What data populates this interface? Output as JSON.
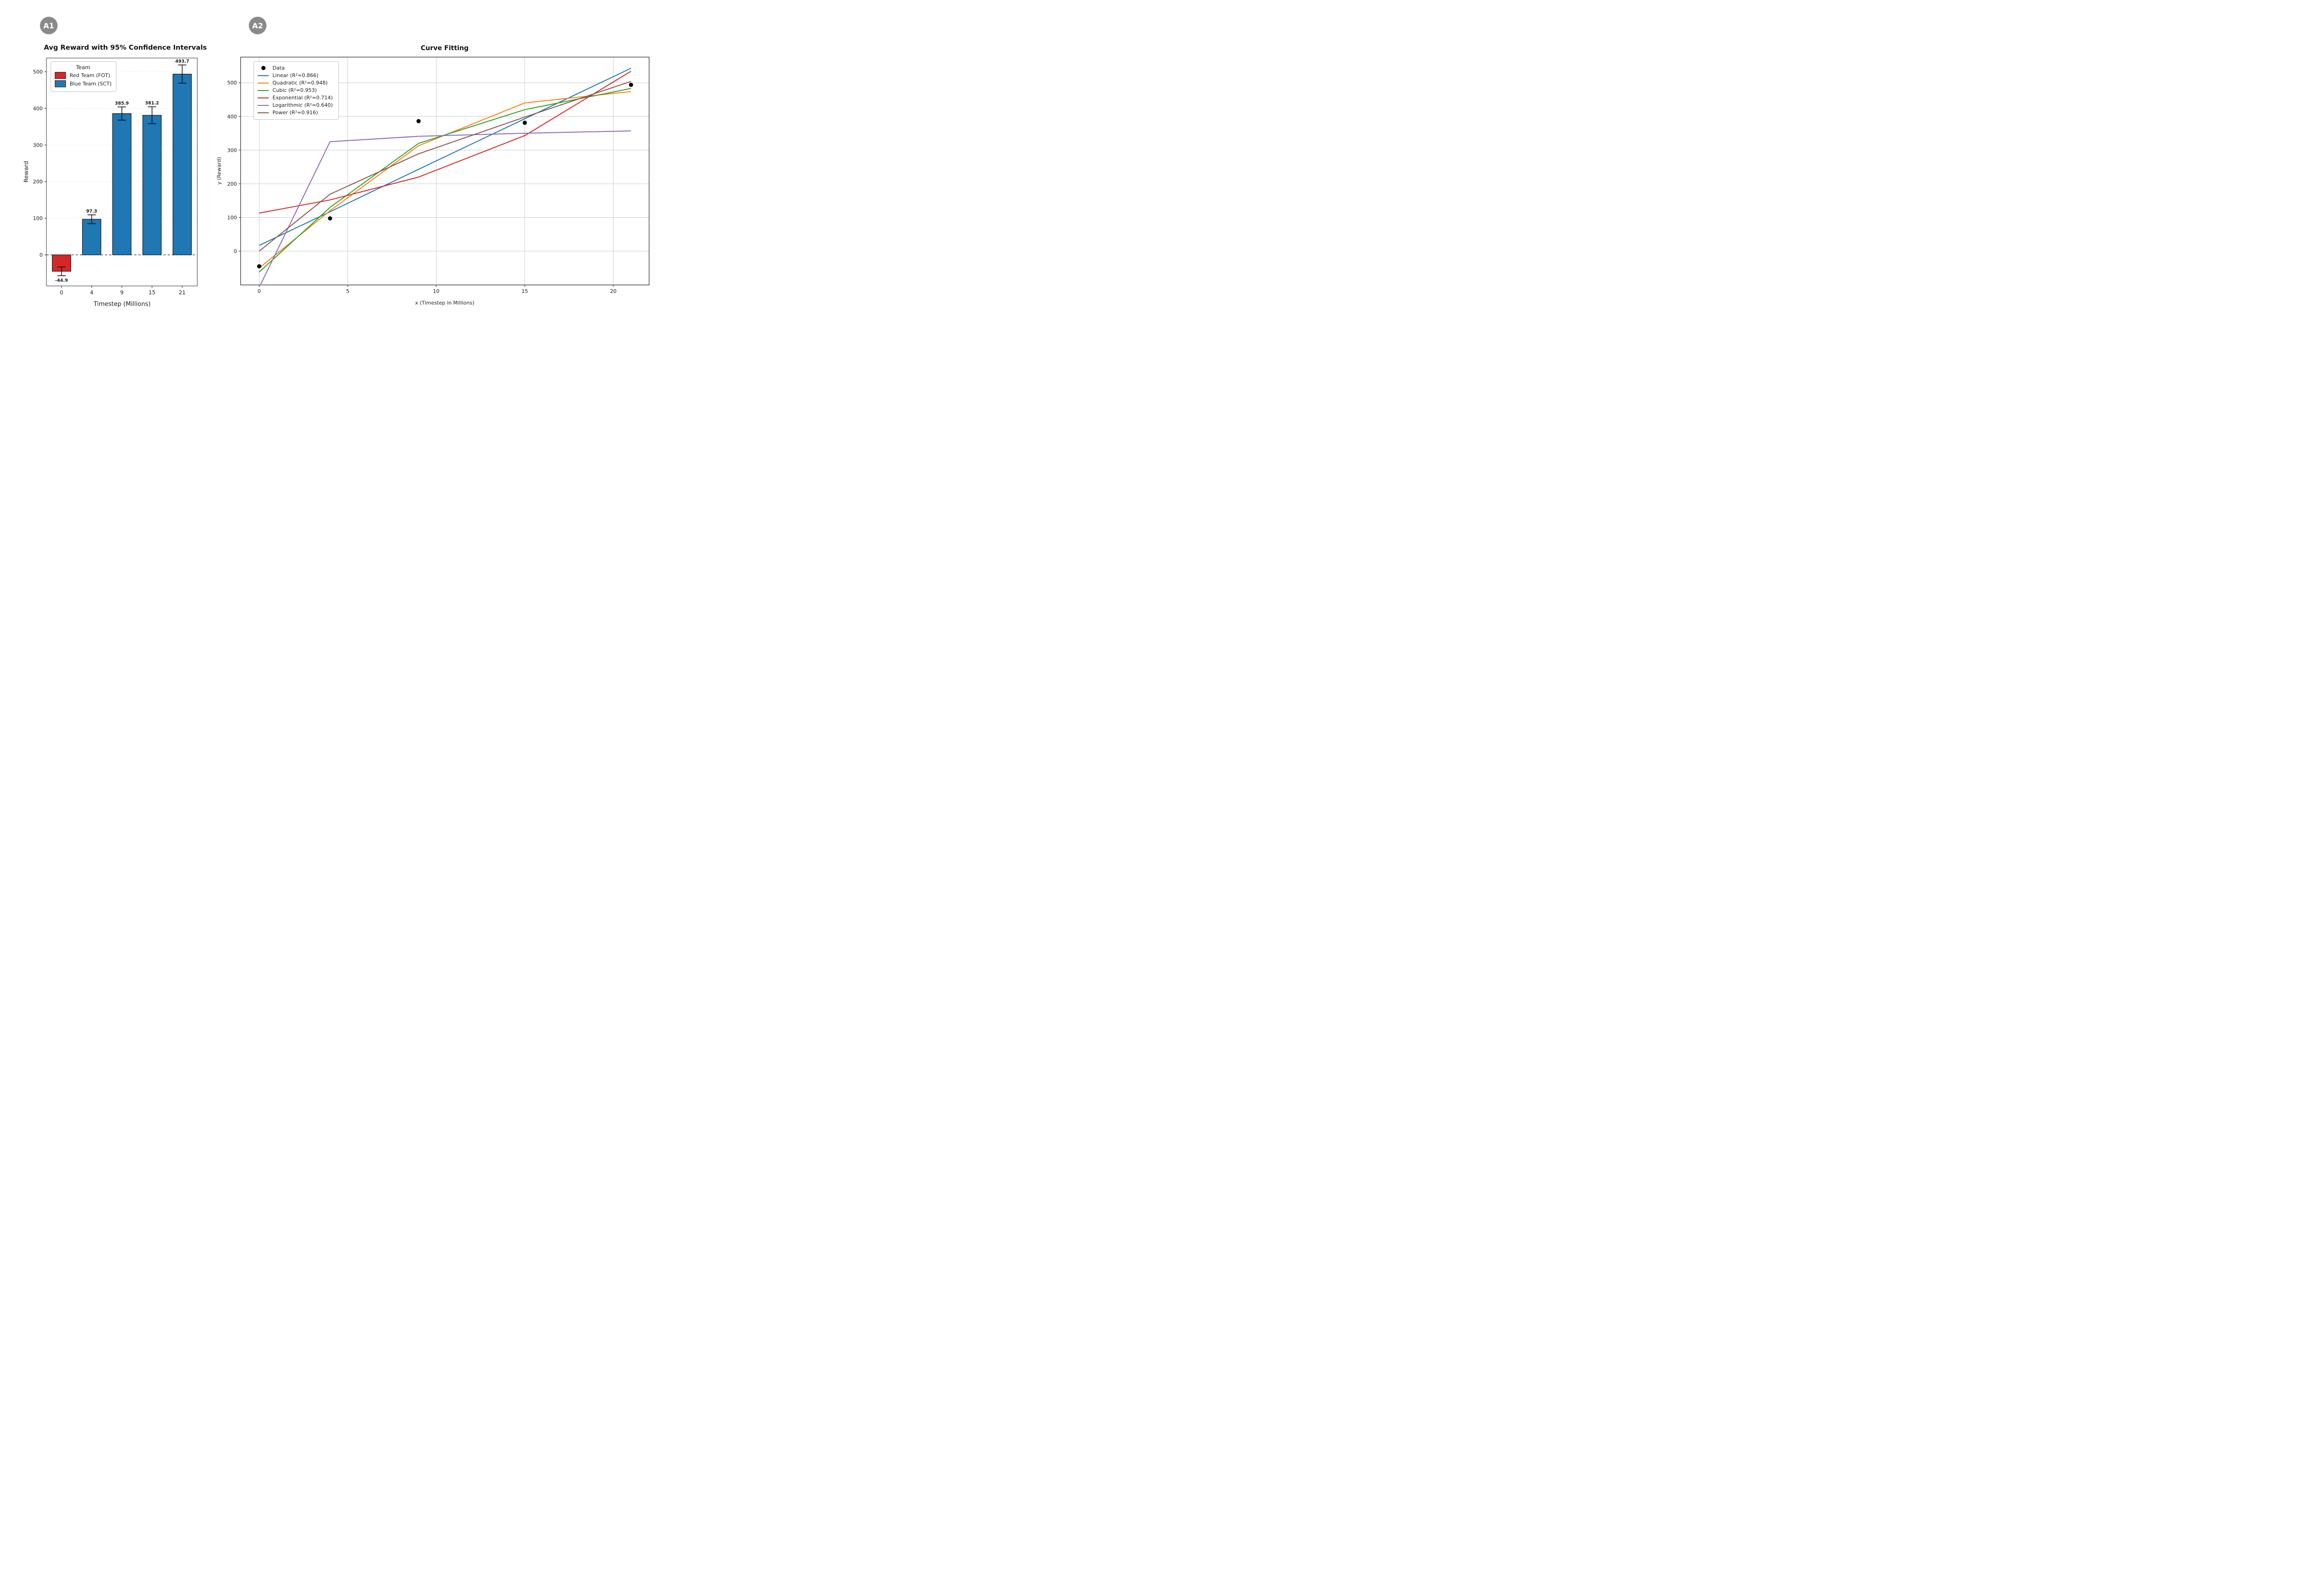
{
  "page": {
    "background": "#ffffff"
  },
  "panels": {
    "a1": {
      "badge": "A1",
      "badge_color": "#8a8a8a",
      "legend": {
        "title": "Team",
        "items": [
          {
            "label": "Red Team (FOT)",
            "color": "#d62728"
          },
          {
            "label": "Blue Team (SCT)",
            "color": "#1f77b4"
          }
        ]
      }
    },
    "a2": {
      "badge": "A2",
      "badge_color": "#8a8a8a",
      "legend": {
        "data_label": "Data",
        "position": "upper left"
      }
    }
  },
  "chart_data": [
    {
      "id": "A1",
      "type": "bar",
      "title": "Avg Reward with 95% Confidence Intervals",
      "xlabel": "Timestep (Millions)",
      "ylabel": "Reward",
      "categories": [
        "0",
        "4",
        "9",
        "15",
        "21"
      ],
      "values": [
        -44.9,
        97.3,
        385.9,
        381.2,
        493.7
      ],
      "errors_95ci": [
        12,
        12,
        18,
        23,
        25
      ],
      "bar_labels": [
        "-44.9",
        "97.3",
        "385.9",
        "381.2",
        "493.7"
      ],
      "bar_colors": [
        "#d62728",
        "#1f77b4",
        "#1f77b4",
        "#1f77b4",
        "#1f77b4"
      ],
      "bar_edge_color": "#1a1a1a",
      "yticks": [
        0,
        100,
        200,
        300,
        400,
        500
      ],
      "ylim": [
        -85,
        538
      ],
      "grid": "faint dotted horizontal lines",
      "zero_line": "black dashed",
      "legend_title": "Team",
      "legend_entries": [
        "Red Team (FOT)",
        "Blue Team (SCT)"
      ]
    },
    {
      "id": "A2",
      "type": "line",
      "title": "Curve Fitting",
      "xlabel": "x (Timestep in Millions)",
      "ylabel": "y (Reward)",
      "data_points": {
        "label": "Data",
        "color": "#000000",
        "x": [
          0,
          4,
          9,
          15,
          21
        ],
        "y": [
          -44.9,
          97.3,
          385.9,
          381.2,
          493.7
        ]
      },
      "series": [
        {
          "name": "Linear (R²=0.866)",
          "color": "#1f77b4",
          "points": [
            [
              0,
              17
            ],
            [
              4,
              117
            ],
            [
              9,
              243
            ],
            [
              15,
              393
            ],
            [
              21,
              543
            ]
          ]
        },
        {
          "name": "Quadratic (R²=0.948)",
          "color": "#ff7f0e",
          "points": [
            [
              0,
              -50
            ],
            [
              4,
              120
            ],
            [
              9,
              313
            ],
            [
              15,
              440
            ],
            [
              21,
              474
            ]
          ]
        },
        {
          "name": "Cubic (R²=0.953)",
          "color": "#2ca02c",
          "points": [
            [
              0,
              -62
            ],
            [
              4,
              130
            ],
            [
              9,
              320
            ],
            [
              15,
              420
            ],
            [
              21,
              483
            ]
          ]
        },
        {
          "name": "Exponential (R²=0.714)",
          "color": "#d62728",
          "points": [
            [
              0,
              113
            ],
            [
              4,
              152
            ],
            [
              9,
              220
            ],
            [
              15,
              343
            ],
            [
              21,
              534
            ]
          ]
        },
        {
          "name": "Logarithmic (R²=0.640)",
          "color": "#9467bd",
          "points": [
            [
              0.07,
              -100
            ],
            [
              4,
              325
            ],
            [
              9,
              341
            ],
            [
              15,
              350
            ],
            [
              21,
              357
            ]
          ]
        },
        {
          "name": "Power (R²=0.916)",
          "color": "#8c564b",
          "points": [
            [
              0,
              0
            ],
            [
              4,
              169
            ],
            [
              9,
              289
            ],
            [
              15,
              398
            ],
            [
              21,
              504
            ]
          ]
        }
      ],
      "xticks": [
        0,
        5,
        10,
        15,
        20
      ],
      "yticks": [
        0,
        100,
        200,
        300,
        400,
        500
      ],
      "xlim": [
        -1.05,
        22.05
      ],
      "ylim": [
        -100,
        576
      ],
      "grid": true,
      "legend_position": "upper left"
    }
  ]
}
